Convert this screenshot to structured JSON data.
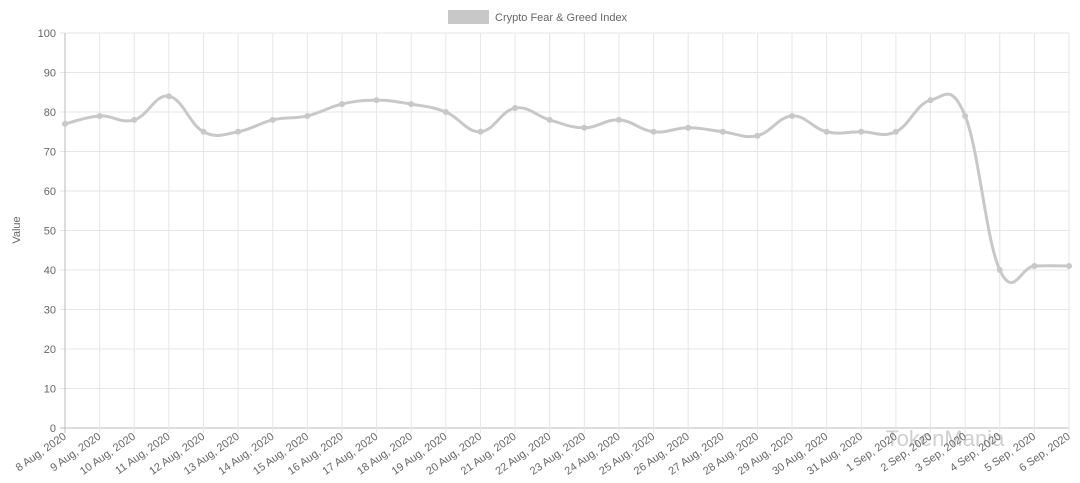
{
  "chart_data": {
    "type": "line",
    "y_label": "Value",
    "watermark": "TokenMania",
    "categories": [
      "8 Aug, 2020",
      "9 Aug, 2020",
      "10 Aug, 2020",
      "11 Aug, 2020",
      "12 Aug, 2020",
      "13 Aug, 2020",
      "14 Aug, 2020",
      "15 Aug, 2020",
      "16 Aug, 2020",
      "17 Aug, 2020",
      "18 Aug, 2020",
      "19 Aug, 2020",
      "20 Aug, 2020",
      "21 Aug, 2020",
      "22 Aug, 2020",
      "23 Aug, 2020",
      "24 Aug, 2020",
      "25 Aug, 2020",
      "26 Aug, 2020",
      "27 Aug, 2020",
      "28 Aug, 2020",
      "29 Aug, 2020",
      "30 Aug, 2020",
      "31 Aug, 2020",
      "1 Sep, 2020",
      "2 Sep, 2020",
      "3 Sep, 2020",
      "4 Sep, 2020",
      "5 Sep, 2020",
      "6 Sep, 2020"
    ],
    "series": [
      {
        "name": "Crypto Fear & Greed Index",
        "color": "#c8c8c8",
        "values": [
          77,
          79,
          78,
          84,
          75,
          75,
          78,
          79,
          82,
          83,
          82,
          80,
          75,
          81,
          78,
          76,
          78,
          75,
          76,
          75,
          74,
          79,
          75,
          75,
          75,
          83,
          79,
          40,
          41,
          41
        ]
      }
    ],
    "ylim": [
      0,
      100
    ],
    "yticks": [
      0,
      10,
      20,
      30,
      40,
      50,
      60,
      70,
      80,
      90,
      100
    ],
    "grid": true,
    "legend": "top"
  }
}
